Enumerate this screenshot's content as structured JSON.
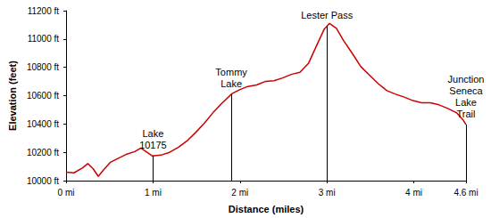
{
  "chart_data": {
    "type": "line",
    "x_label": "Distance (miles)",
    "y_label": "Elevation (feet)",
    "color": "#cc0000",
    "grid": false,
    "x": [
      0,
      0.09,
      0.19,
      0.25,
      0.31,
      0.37,
      0.43,
      0.51,
      0.59,
      0.69,
      0.79,
      0.86,
      0.92,
      0.99,
      1.09,
      1.19,
      1.29,
      1.39,
      1.49,
      1.59,
      1.69,
      1.79,
      1.91,
      1.99,
      2.09,
      2.19,
      2.29,
      2.39,
      2.49,
      2.59,
      2.69,
      2.79,
      2.89,
      2.97,
      3.03,
      3.11,
      3.19,
      3.29,
      3.39,
      3.49,
      3.59,
      3.69,
      3.79,
      3.89,
      3.99,
      4.09,
      4.19,
      4.29,
      4.39,
      4.49,
      4.57,
      4.6
    ],
    "values": [
      10060,
      10055,
      10090,
      10120,
      10085,
      10030,
      10075,
      10130,
      10155,
      10185,
      10205,
      10230,
      10205,
      10175,
      10180,
      10200,
      10235,
      10280,
      10340,
      10405,
      10480,
      10545,
      10615,
      10640,
      10665,
      10675,
      10700,
      10705,
      10725,
      10750,
      10765,
      10830,
      10965,
      11070,
      11110,
      11075,
      10990,
      10900,
      10805,
      10745,
      10685,
      10635,
      10610,
      10590,
      10565,
      10550,
      10550,
      10535,
      10510,
      10480,
      10425,
      10395
    ],
    "xlim": [
      0,
      4.6
    ],
    "xticks": [
      {
        "value": 0,
        "label": "0 mi"
      },
      {
        "value": 1,
        "label": "1 mi"
      },
      {
        "value": 2,
        "label": "2 mi"
      },
      {
        "value": 3,
        "label": "3 mi"
      },
      {
        "value": 4,
        "label": "4 mi"
      },
      {
        "value": 4.6,
        "label": "4.6 mi"
      }
    ],
    "ylim": [
      10000,
      11200
    ],
    "yticks": [
      {
        "value": 10000,
        "label": "10000 ft"
      },
      {
        "value": 10200,
        "label": "10200 ft"
      },
      {
        "value": 10400,
        "label": "10400 ft"
      },
      {
        "value": 10600,
        "label": "10600 ft"
      },
      {
        "value": 10800,
        "label": "10800 ft"
      },
      {
        "value": 11000,
        "label": "11000 ft"
      },
      {
        "value": 11200,
        "label": "11200 ft"
      }
    ],
    "annotations": [
      {
        "x": 1.0,
        "label": "Lake\n10175"
      },
      {
        "x": 1.9,
        "label": "Tommy\nLake"
      },
      {
        "x": 3.0,
        "label": "Lester Pass"
      },
      {
        "x": 4.6,
        "label": "Junction\nSeneca\nLake\nTrail"
      }
    ]
  }
}
